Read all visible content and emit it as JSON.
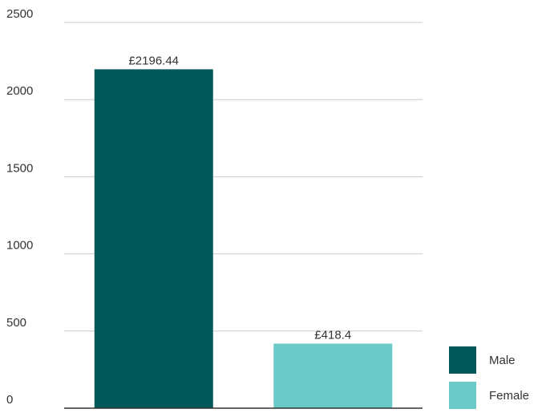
{
  "chart_data": {
    "type": "bar",
    "categories": [
      "Male",
      "Female"
    ],
    "values": [
      2196.44,
      418.4
    ],
    "data_labels": [
      "£2196.44",
      "£418.4"
    ],
    "colors": [
      "#03585a",
      "#6bcac7"
    ],
    "ylim": [
      0,
      2500
    ],
    "yticks": [
      0,
      500,
      1000,
      1500,
      2000,
      2500
    ],
    "grid": true,
    "legend": {
      "placement": "bottom-right",
      "entries": [
        {
          "label": "Male",
          "color": "#03585a"
        },
        {
          "label": "Female",
          "color": "#6bcac7"
        }
      ]
    }
  }
}
